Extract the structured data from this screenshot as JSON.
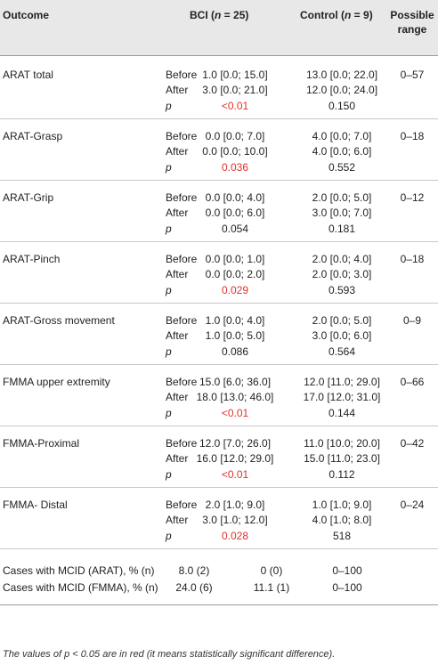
{
  "header": {
    "outcome": "Outcome",
    "bci_prefix": "BCI (",
    "bci_n": "n",
    "bci_suffix": " = 25)",
    "control_prefix": "Control (",
    "control_n": "n",
    "control_suffix": " = 9)",
    "range_line1": "Possible",
    "range_line2": "range"
  },
  "groups": [
    {
      "outcome": "ARAT total",
      "range": "0–57",
      "rows": [
        {
          "label": "Before",
          "bci": "1.0 [0.0; 15.0]",
          "control": "13.0 [0.0; 22.0]"
        },
        {
          "label": "After",
          "bci": "3.0 [0.0; 21.0]",
          "control": "12.0 [0.0; 24.0]"
        },
        {
          "label": "p",
          "bci": "<0.01",
          "control": "0.150"
        }
      ]
    },
    {
      "outcome": "ARAT-Grasp",
      "range": "0–18",
      "rows": [
        {
          "label": "Before",
          "bci": "0.0 [0.0; 7.0]",
          "control": "4.0 [0.0; 7.0]"
        },
        {
          "label": "After",
          "bci": "0.0 [0.0; 10.0]",
          "control": "4.0 [0.0; 6.0]"
        },
        {
          "label": "p",
          "bci": "0.036",
          "control": "0.552"
        }
      ]
    },
    {
      "outcome": "ARAT-Grip",
      "range": "0–12",
      "rows": [
        {
          "label": "Before",
          "bci": "0.0 [0.0; 4.0]",
          "control": "2.0 [0.0; 5.0]"
        },
        {
          "label": "After",
          "bci": "0.0 [0.0; 6.0]",
          "control": "3.0 [0.0; 7.0]"
        },
        {
          "label": "p",
          "bci": "0.054",
          "control": "0.181"
        }
      ]
    },
    {
      "outcome": "ARAT-Pinch",
      "range": "0–18",
      "rows": [
        {
          "label": "Before",
          "bci": "0.0 [0.0; 1.0]",
          "control": "2.0 [0.0; 4.0]"
        },
        {
          "label": "After",
          "bci": "0.0 [0.0; 2.0]",
          "control": "2.0 [0.0; 3.0]"
        },
        {
          "label": "p",
          "bci": "0.029",
          "control": "0.593"
        }
      ]
    },
    {
      "outcome": "ARAT-Gross movement",
      "range": "0–9",
      "rows": [
        {
          "label": "Before",
          "bci": "1.0 [0.0; 4.0]",
          "control": "2.0 [0.0; 5.0]"
        },
        {
          "label": "After",
          "bci": "1.0 [0.0; 5.0]",
          "control": "3.0 [0.0; 6.0]"
        },
        {
          "label": "p",
          "bci": "0.086",
          "control": "0.564"
        }
      ]
    },
    {
      "outcome": "FMMA upper extremity",
      "range": "0–66",
      "rows": [
        {
          "label": "Before",
          "bci": "15.0 [6.0; 36.0]",
          "control": "12.0 [11.0; 29.0]"
        },
        {
          "label": "After",
          "bci": "18.0 [13.0; 46.0]",
          "control": "17.0 [12.0; 31.0]"
        },
        {
          "label": "p",
          "bci": "<0.01",
          "control": "0.144"
        }
      ]
    },
    {
      "outcome": "FMMA-Proximal",
      "range": "0–42",
      "rows": [
        {
          "label": "Before",
          "bci": "12.0 [7.0; 26.0]",
          "control": "11.0 [10.0; 20.0]"
        },
        {
          "label": "After",
          "bci": "16.0 [12.0; 29.0]",
          "control": "15.0 [11.0; 23.0]"
        },
        {
          "label": "p",
          "bci": "<0.01",
          "control": "0.112"
        }
      ]
    },
    {
      "outcome": "FMMA- Distal",
      "range": "0–24",
      "rows": [
        {
          "label": "Before",
          "bci": "2.0 [1.0; 9.0]",
          "control": "1.0 [1.0; 9.0]"
        },
        {
          "label": "After",
          "bci": "3.0 [1.0; 12.0]",
          "control": "4.0 [1.0; 8.0]"
        },
        {
          "label": "p",
          "bci": "0.028",
          "control": "518"
        }
      ]
    }
  ],
  "mcid": [
    {
      "label": "Cases with MCID (ARAT), % (n)",
      "bci": "8.0 (2)",
      "control": "0 (0)",
      "range": "0–100"
    },
    {
      "label": "Cases with MCID (FMMA), % (n)",
      "bci": "24.0 (6)",
      "control": "11.1 (1)",
      "range": "0–100"
    }
  ],
  "footnote": "The values of p < 0.05 are in red (it means statistically significant difference).",
  "colors": {
    "significant": "#e0312c",
    "header_bg": "#e8e8e8",
    "text": "#222222"
  }
}
